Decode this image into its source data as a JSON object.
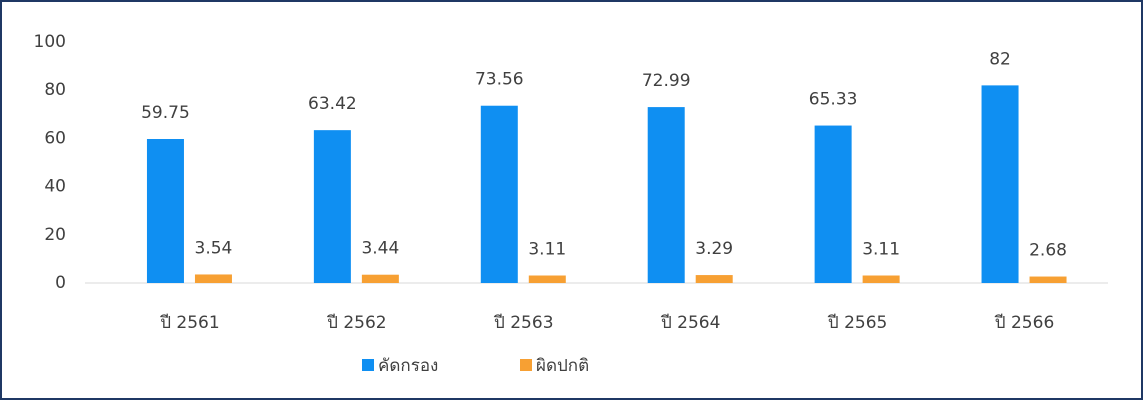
{
  "chart_data": {
    "type": "bar",
    "categories": [
      "ปี 2561",
      "ปี 2562",
      "ปี 2563",
      "ปี 2564",
      "ปี 2565",
      "ปี 2566"
    ],
    "series": [
      {
        "name": "คัดกรอง",
        "color": "#0f8ff2",
        "values": [
          59.75,
          63.42,
          73.56,
          72.99,
          65.33,
          82
        ]
      },
      {
        "name": "ผิดปกติ",
        "color": "#f7a033",
        "values": [
          3.54,
          3.44,
          3.11,
          3.29,
          3.11,
          2.68
        ]
      }
    ],
    "ylim": [
      0,
      100
    ],
    "yticks": [
      0,
      20,
      40,
      60,
      80,
      100
    ],
    "grid": false,
    "legend": "bottom"
  }
}
